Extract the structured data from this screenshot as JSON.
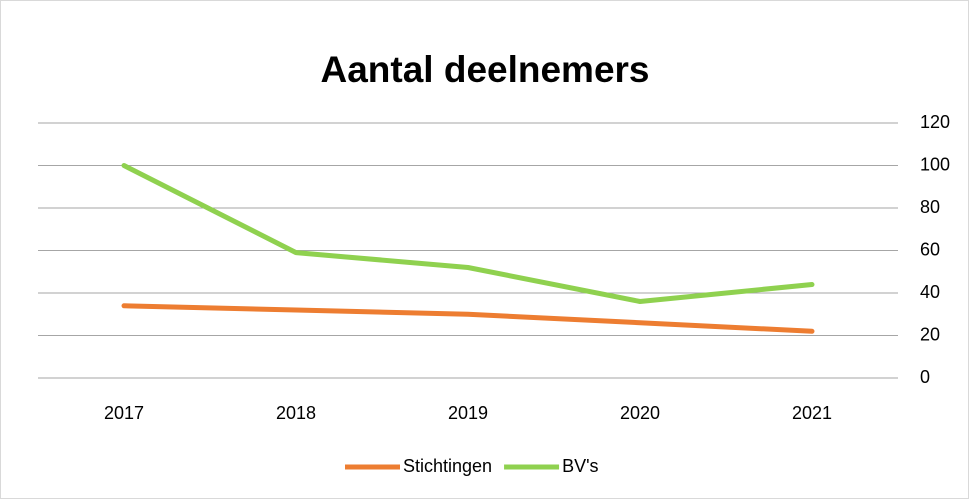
{
  "chart_data": {
    "type": "line",
    "title": "Aantal deelnemers",
    "categories": [
      "2017",
      "2018",
      "2019",
      "2020",
      "2021"
    ],
    "series": [
      {
        "name": "Stichtingen",
        "color": "#ed7d31",
        "values": [
          34,
          32,
          30,
          26,
          22
        ]
      },
      {
        "name": "BV's",
        "color": "#8fd14f",
        "values": [
          100,
          59,
          52,
          36,
          44
        ]
      }
    ],
    "ylim": [
      0,
      120
    ],
    "yticks": [
      0,
      20,
      40,
      60,
      80,
      100,
      120
    ],
    "grid": true,
    "y_axis_side": "right",
    "legend": "bottom"
  }
}
